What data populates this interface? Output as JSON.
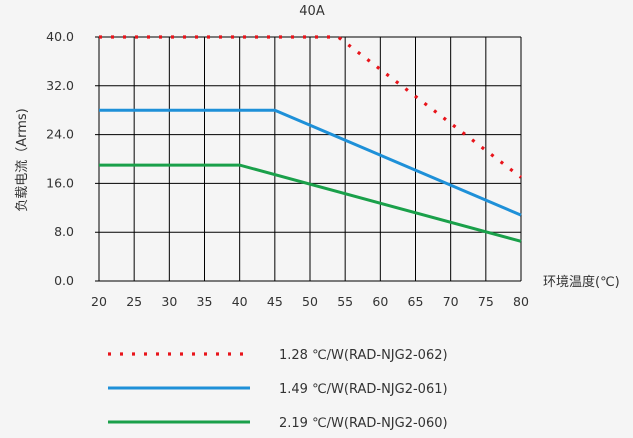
{
  "chart_data": {
    "type": "line",
    "title": "40A",
    "xlabel": "环境温度(℃)",
    "ylabel": "负载电流（Arms)",
    "xlim": [
      20,
      80
    ],
    "ylim": [
      0,
      40
    ],
    "x_ticks": [
      "20",
      "25",
      "30",
      "35",
      "40",
      "45",
      "50",
      "55",
      "60",
      "65",
      "70",
      "75",
      "80"
    ],
    "y_ticks": [
      "0.0",
      "8.0",
      "16.0",
      "24.0",
      "32.0",
      "40.0"
    ],
    "grid": true,
    "legend_position": "bottom",
    "series": [
      {
        "name": "1.28 ℃/W(RAD-NJG2-062)",
        "color": "#e8141b",
        "style": "dotted",
        "x": [
          20,
          54,
          80
        ],
        "y": [
          40,
          40,
          17
        ]
      },
      {
        "name": "1.49 ℃/W(RAD-NJG2-061)",
        "color": "#1e90d8",
        "style": "solid",
        "x": [
          20,
          45,
          80
        ],
        "y": [
          28,
          28,
          10.8
        ]
      },
      {
        "name": "2.19 ℃/W(RAD-NJG2-060)",
        "color": "#1aa04a",
        "style": "solid",
        "x": [
          20,
          40,
          80
        ],
        "y": [
          19,
          19,
          6.5
        ]
      }
    ]
  }
}
